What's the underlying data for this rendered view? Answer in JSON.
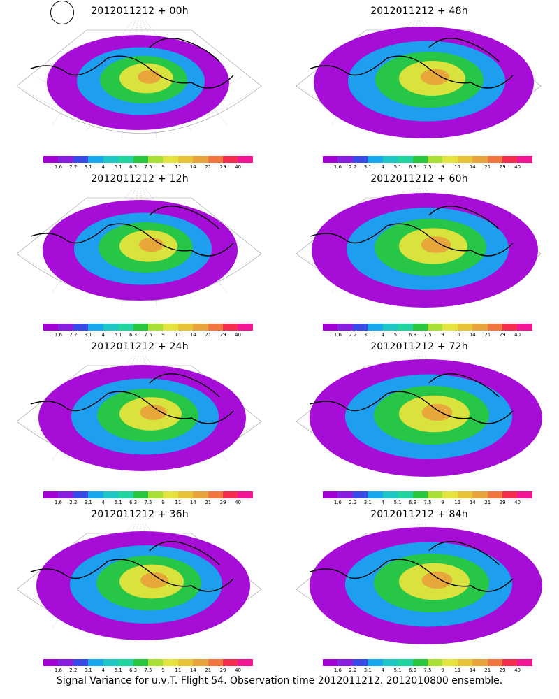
{
  "chart_data": [
    {
      "type": "heatmap",
      "title": "2012011212 + 00h",
      "colorbar_ticks": [
        "1.6",
        "2.2",
        "3.1",
        "4",
        "5.1",
        "6.3",
        "7.5",
        "9",
        "11",
        "14",
        "21",
        "29",
        "40"
      ],
      "intensity": 0.45
    },
    {
      "type": "heatmap",
      "title": "2012011212 + 48h",
      "colorbar_ticks": [
        "1.6",
        "2.2",
        "3.1",
        "4",
        "5.1",
        "6.3",
        "7.5",
        "9",
        "11",
        "14",
        "21",
        "29",
        "40"
      ],
      "intensity": 0.75
    },
    {
      "type": "heatmap",
      "title": "2012011212 + 12h",
      "colorbar_ticks": [
        "1.6",
        "2.2",
        "3.1",
        "4",
        "5.1",
        "6.3",
        "7.5",
        "9",
        "11",
        "14",
        "21",
        "29",
        "40"
      ],
      "intensity": 0.55
    },
    {
      "type": "heatmap",
      "title": "2012011212 + 60h",
      "colorbar_ticks": [
        "1.6",
        "2.2",
        "3.1",
        "4",
        "5.1",
        "6.3",
        "7.5",
        "9",
        "11",
        "14",
        "21",
        "29",
        "40"
      ],
      "intensity": 0.8
    },
    {
      "type": "heatmap",
      "title": "2012011212 + 24h",
      "colorbar_ticks": [
        "1.6",
        "2.2",
        "3.1",
        "4",
        "5.1",
        "6.3",
        "7.5",
        "9",
        "11",
        "14",
        "21",
        "29",
        "40"
      ],
      "intensity": 0.65
    },
    {
      "type": "heatmap",
      "title": "2012011212 + 72h",
      "colorbar_ticks": [
        "1.6",
        "2.2",
        "3.1",
        "4",
        "5.1",
        "6.3",
        "7.5",
        "9",
        "11",
        "14",
        "21",
        "29",
        "40"
      ],
      "intensity": 0.85
    },
    {
      "type": "heatmap",
      "title": "2012011212 + 36h",
      "colorbar_ticks": [
        "1.6",
        "2.2",
        "3.1",
        "4",
        "5.1",
        "6.3",
        "7.5",
        "9",
        "11",
        "14",
        "21",
        "29",
        "40"
      ],
      "intensity": 0.7
    },
    {
      "type": "heatmap",
      "title": "2012011212 + 84h",
      "colorbar_ticks": [
        "1.6",
        "2.2",
        "3.1",
        "4",
        "5.1",
        "6.3",
        "7.5",
        "9",
        "11",
        "14",
        "21",
        "29",
        "40"
      ],
      "intensity": 0.85
    }
  ],
  "colorbar_colors": [
    "#a100d4",
    "#8a1de0",
    "#3a4ae8",
    "#16a7ef",
    "#1cc6c6",
    "#20d4a0",
    "#28c83c",
    "#a9df33",
    "#e4e43e",
    "#e8c336",
    "#e8a33a",
    "#f2743e",
    "#f52e4e",
    "#f21696"
  ],
  "caption": "Signal Variance for u,v,T. Flight 54. Observation time 2012011212. 2012010800 ensemble."
}
